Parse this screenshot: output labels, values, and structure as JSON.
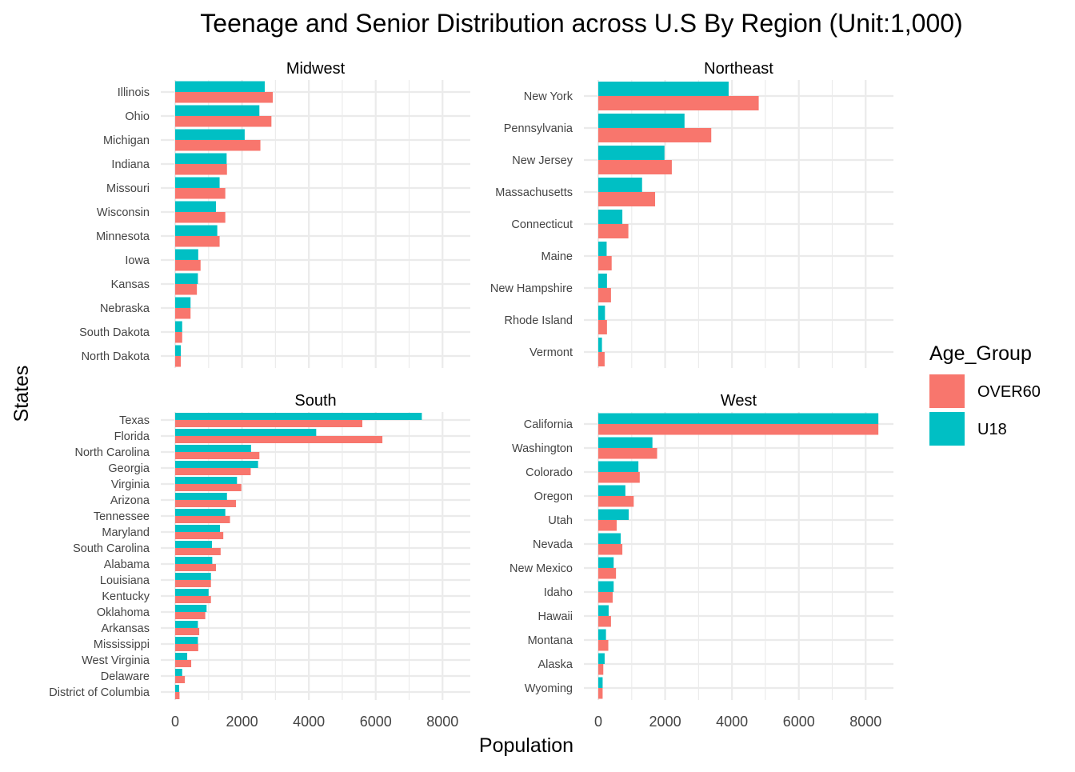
{
  "chart_data": {
    "type": "bar",
    "orientation": "horizontal",
    "title": "Teenage and Senior Distribution across U.S By Region (Unit:1,000)",
    "xlabel": "Population",
    "ylabel": "States",
    "xlim": [
      0,
      8400
    ],
    "xticks": [
      "0",
      "2000",
      "4000",
      "6000",
      "8000"
    ],
    "grid": true,
    "legend": {
      "title": "Age_Group",
      "placement": "right",
      "entries": [
        {
          "name": "OVER60",
          "color": "#F8766D"
        },
        {
          "name": "U18",
          "color": "#00BFC4"
        }
      ]
    },
    "panels": [
      {
        "name": "Midwest",
        "categories": [
          "Illinois",
          "Ohio",
          "Michigan",
          "Indiana",
          "Missouri",
          "Wisconsin",
          "Minnesota",
          "Iowa",
          "Kansas",
          "Nebraska",
          "South Dakota",
          "North Dakota"
        ],
        "series": [
          {
            "name": "OVER60",
            "values": [
              2920,
              2880,
              2550,
              1550,
              1500,
              1500,
              1330,
              760,
              650,
              460,
              210,
              170
            ]
          },
          {
            "name": "U18",
            "values": [
              2680,
              2520,
              2080,
              1540,
              1330,
              1220,
              1260,
              690,
              680,
              460,
              210,
              170
            ]
          }
        ]
      },
      {
        "name": "Northeast",
        "categories": [
          "New York",
          "Pennsylvania",
          "New Jersey",
          "Massachusetts",
          "Connecticut",
          "Maine",
          "New Hampshire",
          "Rhode Island",
          "Vermont"
        ],
        "series": [
          {
            "name": "OVER60",
            "values": [
              4800,
              3380,
              2200,
              1700,
              900,
              400,
              380,
              260,
              190
            ]
          },
          {
            "name": "U18",
            "values": [
              3900,
              2580,
              1980,
              1310,
              720,
              250,
              260,
              200,
              110
            ]
          }
        ]
      },
      {
        "name": "South",
        "categories": [
          "Texas",
          "Florida",
          "North Carolina",
          "Georgia",
          "Virginia",
          "Arizona",
          "Tennessee",
          "Maryland",
          "South Carolina",
          "Alabama",
          "Louisiana",
          "Kentucky",
          "Oklahoma",
          "Arkansas",
          "Mississippi",
          "West Virginia",
          "Delaware",
          "District of Columbia"
        ],
        "series": [
          {
            "name": "OVER60",
            "values": [
              5600,
              6200,
              2520,
              2260,
              1980,
              1820,
              1640,
              1440,
              1360,
              1220,
              1070,
              1070,
              900,
              720,
              690,
              480,
              290,
              130
            ]
          },
          {
            "name": "U18",
            "values": [
              7380,
              4220,
              2270,
              2480,
              1850,
              1550,
              1500,
              1340,
              1100,
              1110,
              1070,
              1000,
              940,
              680,
              680,
              360,
              210,
              120
            ]
          }
        ]
      },
      {
        "name": "West",
        "categories": [
          "California",
          "Washington",
          "Colorado",
          "Oregon",
          "Utah",
          "Nevada",
          "New Mexico",
          "Idaho",
          "Hawaii",
          "Montana",
          "Alaska",
          "Wyoming"
        ],
        "series": [
          {
            "name": "OVER60",
            "values": [
              8380,
              1760,
              1240,
              1060,
              550,
              720,
              530,
              430,
              380,
              300,
              150,
              130
            ]
          },
          {
            "name": "U18",
            "values": [
              8380,
              1620,
              1200,
              810,
              910,
              670,
              460,
              460,
              310,
              230,
              190,
              130
            ]
          }
        ]
      }
    ]
  }
}
